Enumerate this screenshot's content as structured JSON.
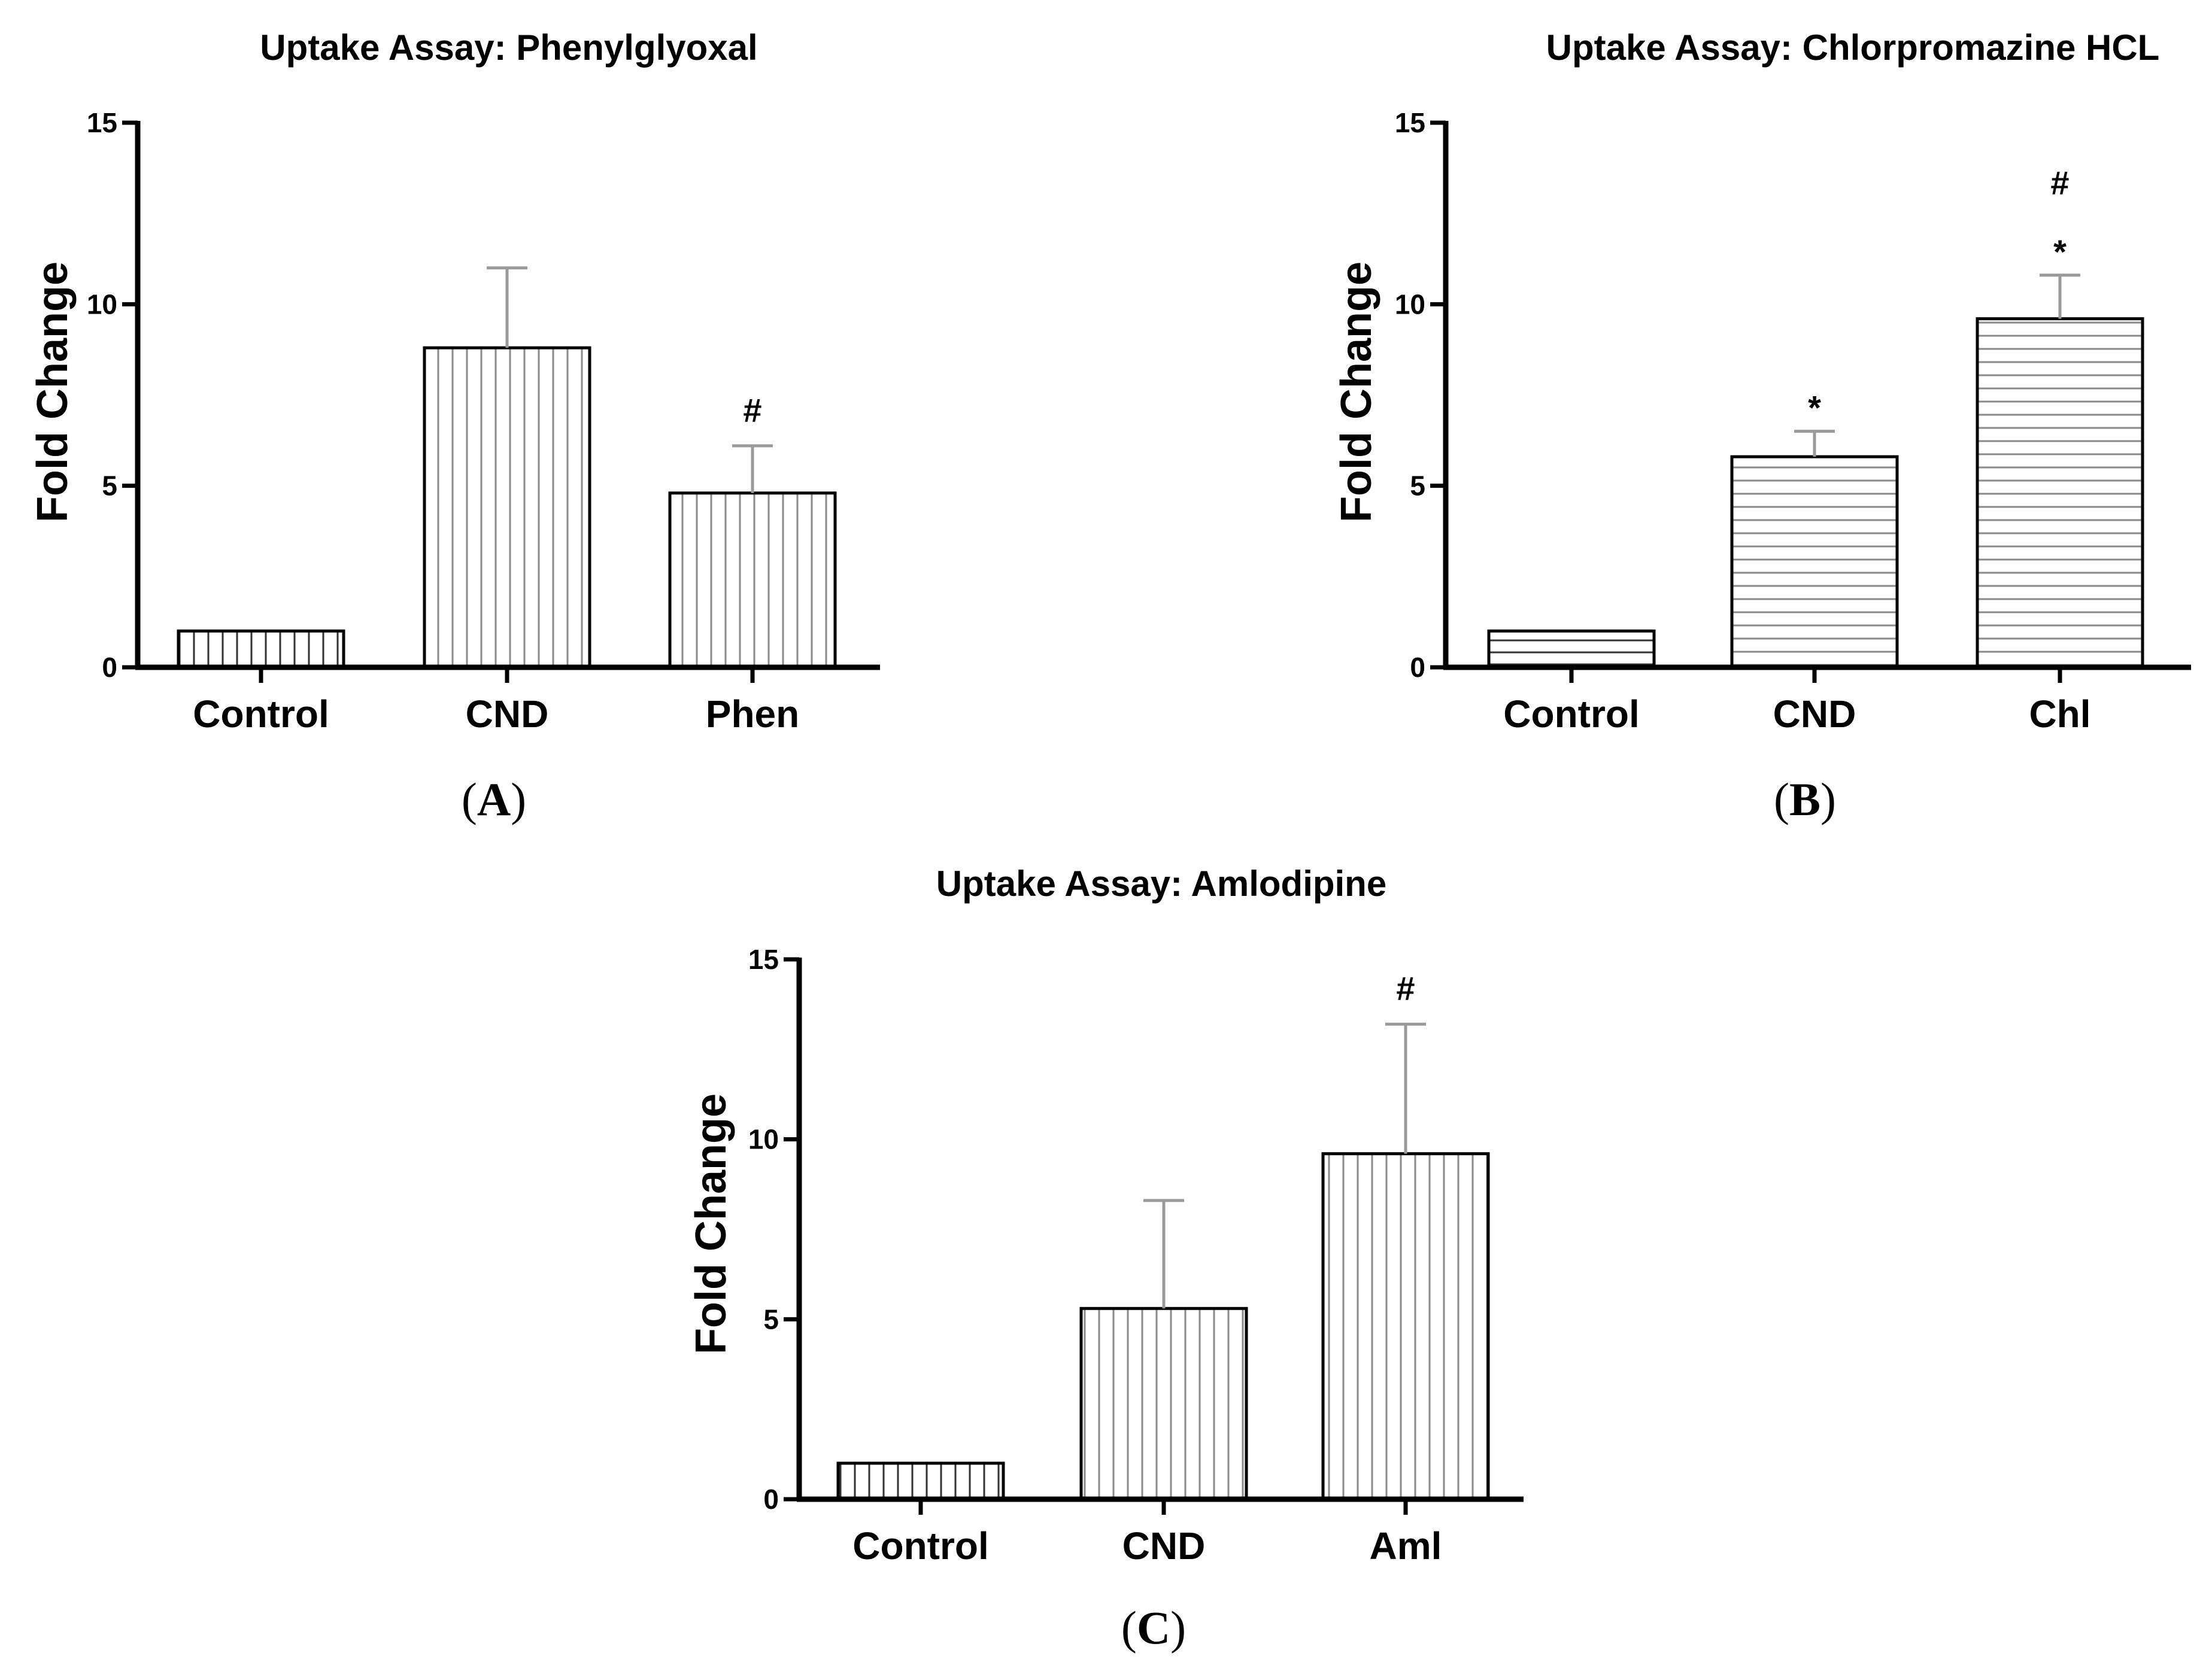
{
  "chart_data": [
    {
      "type": "bar",
      "panel": "(A)",
      "panel_letter": "A",
      "title": "Uptake Assay: Phenylglyoxal",
      "xlabel": "",
      "ylabel": "Fold Change",
      "ylim": [
        0,
        15
      ],
      "yticks": [
        "0",
        "5",
        "10",
        "15"
      ],
      "categories": [
        "Control",
        "CND",
        "Phen"
      ],
      "values": [
        1.0,
        8.8,
        4.8
      ],
      "errors": [
        0,
        2.2,
        1.3
      ],
      "annotations": [
        "",
        "",
        "#"
      ],
      "pattern": "vertical",
      "grid": false
    },
    {
      "type": "bar",
      "panel": "(B)",
      "panel_letter": "B",
      "title": "Uptake Assay: Chlorpromazine HCL",
      "xlabel": "",
      "ylabel": "Fold Change",
      "ylim": [
        0,
        15
      ],
      "yticks": [
        "0",
        "5",
        "10",
        "15"
      ],
      "categories": [
        "Control",
        "CND",
        "Chl"
      ],
      "values": [
        1.0,
        5.8,
        9.6
      ],
      "errors": [
        0,
        0.7,
        1.2
      ],
      "annotations": [
        "",
        "*",
        "*\n#"
      ],
      "annotation_lines": [
        [],
        [
          "*"
        ],
        [
          "#",
          "*"
        ]
      ],
      "pattern": "horizontal",
      "grid": false
    },
    {
      "type": "bar",
      "panel": "(C)",
      "panel_letter": "C",
      "title": "Uptake Assay: Amlodipine",
      "xlabel": "",
      "ylabel": "Fold Change",
      "ylim": [
        0,
        15
      ],
      "yticks": [
        "0",
        "5",
        "10",
        "15"
      ],
      "categories": [
        "Control",
        "CND",
        "Aml"
      ],
      "values": [
        1.0,
        5.3,
        9.6
      ],
      "errors": [
        0,
        3.0,
        3.6
      ],
      "annotations": [
        "",
        "",
        "#"
      ],
      "pattern": "vertical",
      "grid": false
    }
  ]
}
